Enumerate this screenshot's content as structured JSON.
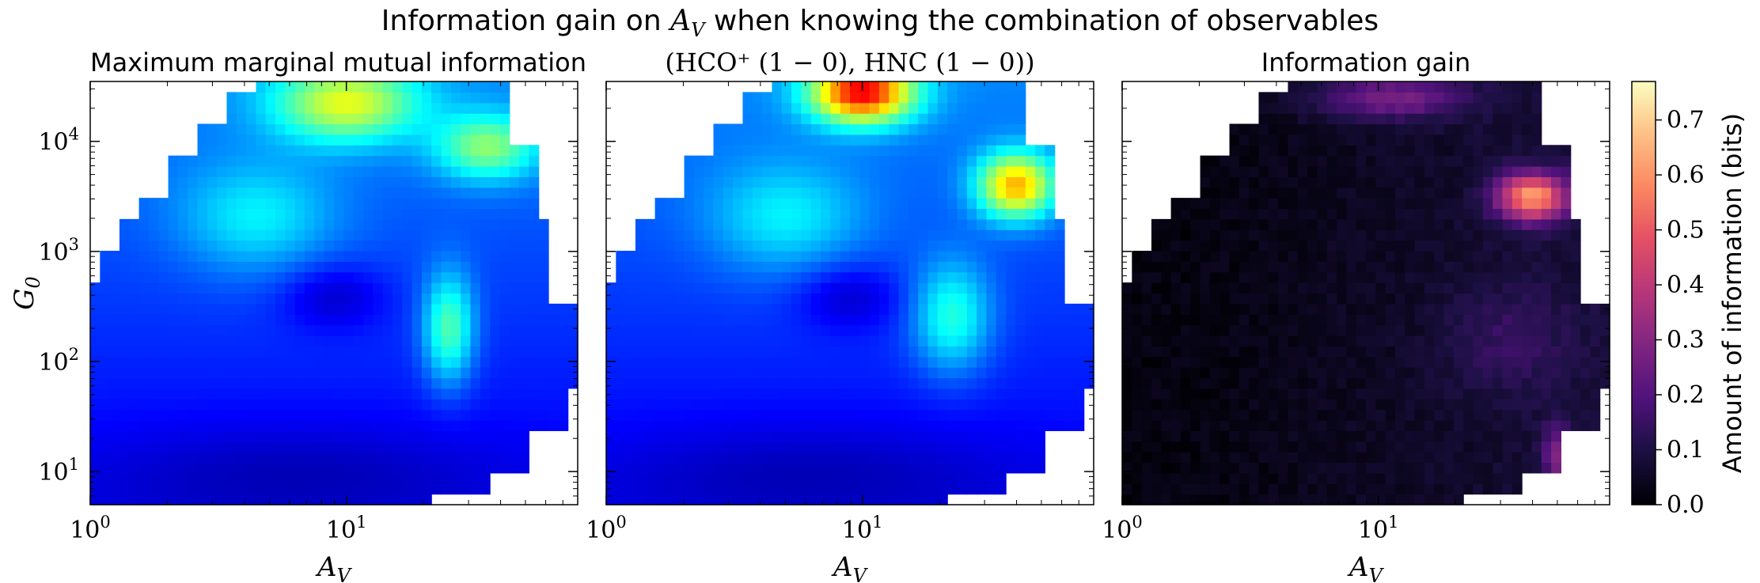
{
  "suptitle_prefix": "Information gain on ",
  "suptitle_var": "A",
  "suptitle_var_sub": "V",
  "suptitle_suffix": " when knowing the combination of observables",
  "chart_data": [
    {
      "type": "heatmap",
      "title": "Maximum marginal mutual information",
      "xlabel": "A_V",
      "ylabel": "G_0",
      "xscale": "log",
      "yscale": "log",
      "xlim": [
        1,
        80
      ],
      "ylim": [
        5,
        35000
      ],
      "xticks": [
        "10^0",
        "10^1"
      ],
      "yticks": [
        "10^1",
        "10^2",
        "10^3",
        "10^4"
      ],
      "colormap": "jet",
      "description_values": "values on shared 0-0.77 bits scale; peaks ~0.45 near A_V 8-14, G_0 > 1e4"
    },
    {
      "type": "heatmap",
      "title": "(HCO⁺ (1 − 0), HNC (1 − 0))",
      "xlabel": "A_V",
      "xscale": "log",
      "yscale": "log",
      "xlim": [
        1,
        80
      ],
      "ylim": [
        5,
        35000
      ],
      "xticks": [
        "10^0",
        "10^1"
      ],
      "colormap": "jet",
      "description_values": "peaks ~0.6 near A_V 8-12, G_0 > 2e4"
    },
    {
      "type": "heatmap",
      "title": "Information gain",
      "xlabel": "A_V",
      "xscale": "log",
      "yscale": "log",
      "xlim": [
        1,
        80
      ],
      "ylim": [
        5,
        35000
      ],
      "xticks": [
        "10^0",
        "10^1"
      ],
      "colormap": "magma",
      "colorbar": {
        "label": "Amount of information (bits)",
        "ticks": [
          0.0,
          0.1,
          0.2,
          0.3,
          0.4,
          0.5,
          0.6,
          0.7
        ],
        "tick_labels": [
          "0.0",
          "0.1",
          "0.2",
          "0.3",
          "0.4",
          "0.5",
          "0.6",
          "0.7"
        ],
        "vmin": 0.0,
        "vmax": 0.77
      }
    }
  ],
  "colors": {
    "jet_low": "#00008f",
    "jet_high": "#ff0000",
    "magma_low": "#000004",
    "magma_high": "#fcfdbf"
  }
}
